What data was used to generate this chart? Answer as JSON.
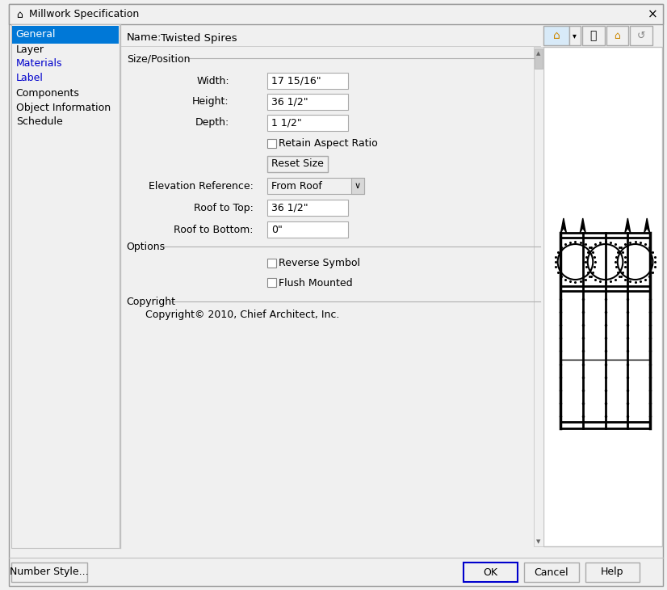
{
  "title": "Millwork Specification",
  "bg_color": "#f0f0f0",
  "white": "#ffffff",
  "sidebar_items": [
    "General",
    "Layer",
    "Materials",
    "Label",
    "Components",
    "Object Information",
    "Schedule"
  ],
  "sidebar_selected_bg": "#0078d7",
  "name_label": "Name:",
  "name_value": "Twisted Spires",
  "section_size_pos": "Size/Position",
  "width_label": "Width:",
  "width_value": "17 15/16\"",
  "height_label": "Height:",
  "height_value": "36 1/2\"",
  "depth_label": "Depth:",
  "depth_value": "1 1/2\"",
  "retain_label": "Retain Aspect Ratio",
  "reset_btn": "Reset Size",
  "elev_ref_label": "Elevation Reference:",
  "elev_ref_value": "From Roof",
  "roof_top_label": "Roof to Top:",
  "roof_top_value": "36 1/2\"",
  "roof_bottom_label": "Roof to Bottom:",
  "roof_bottom_value": "0\"",
  "section_options": "Options",
  "reverse_label": "Reverse Symbol",
  "flush_label": "Flush Mounted",
  "section_copyright": "Copyright",
  "copyright_text": "Copyright© 2010, Chief Architect, Inc.",
  "btn_number_style": "Number Style...",
  "btn_ok": "OK",
  "btn_cancel": "Cancel",
  "btn_help": "Help",
  "separator_color": "#b0b0b0",
  "border_color": "#aaaaaa"
}
